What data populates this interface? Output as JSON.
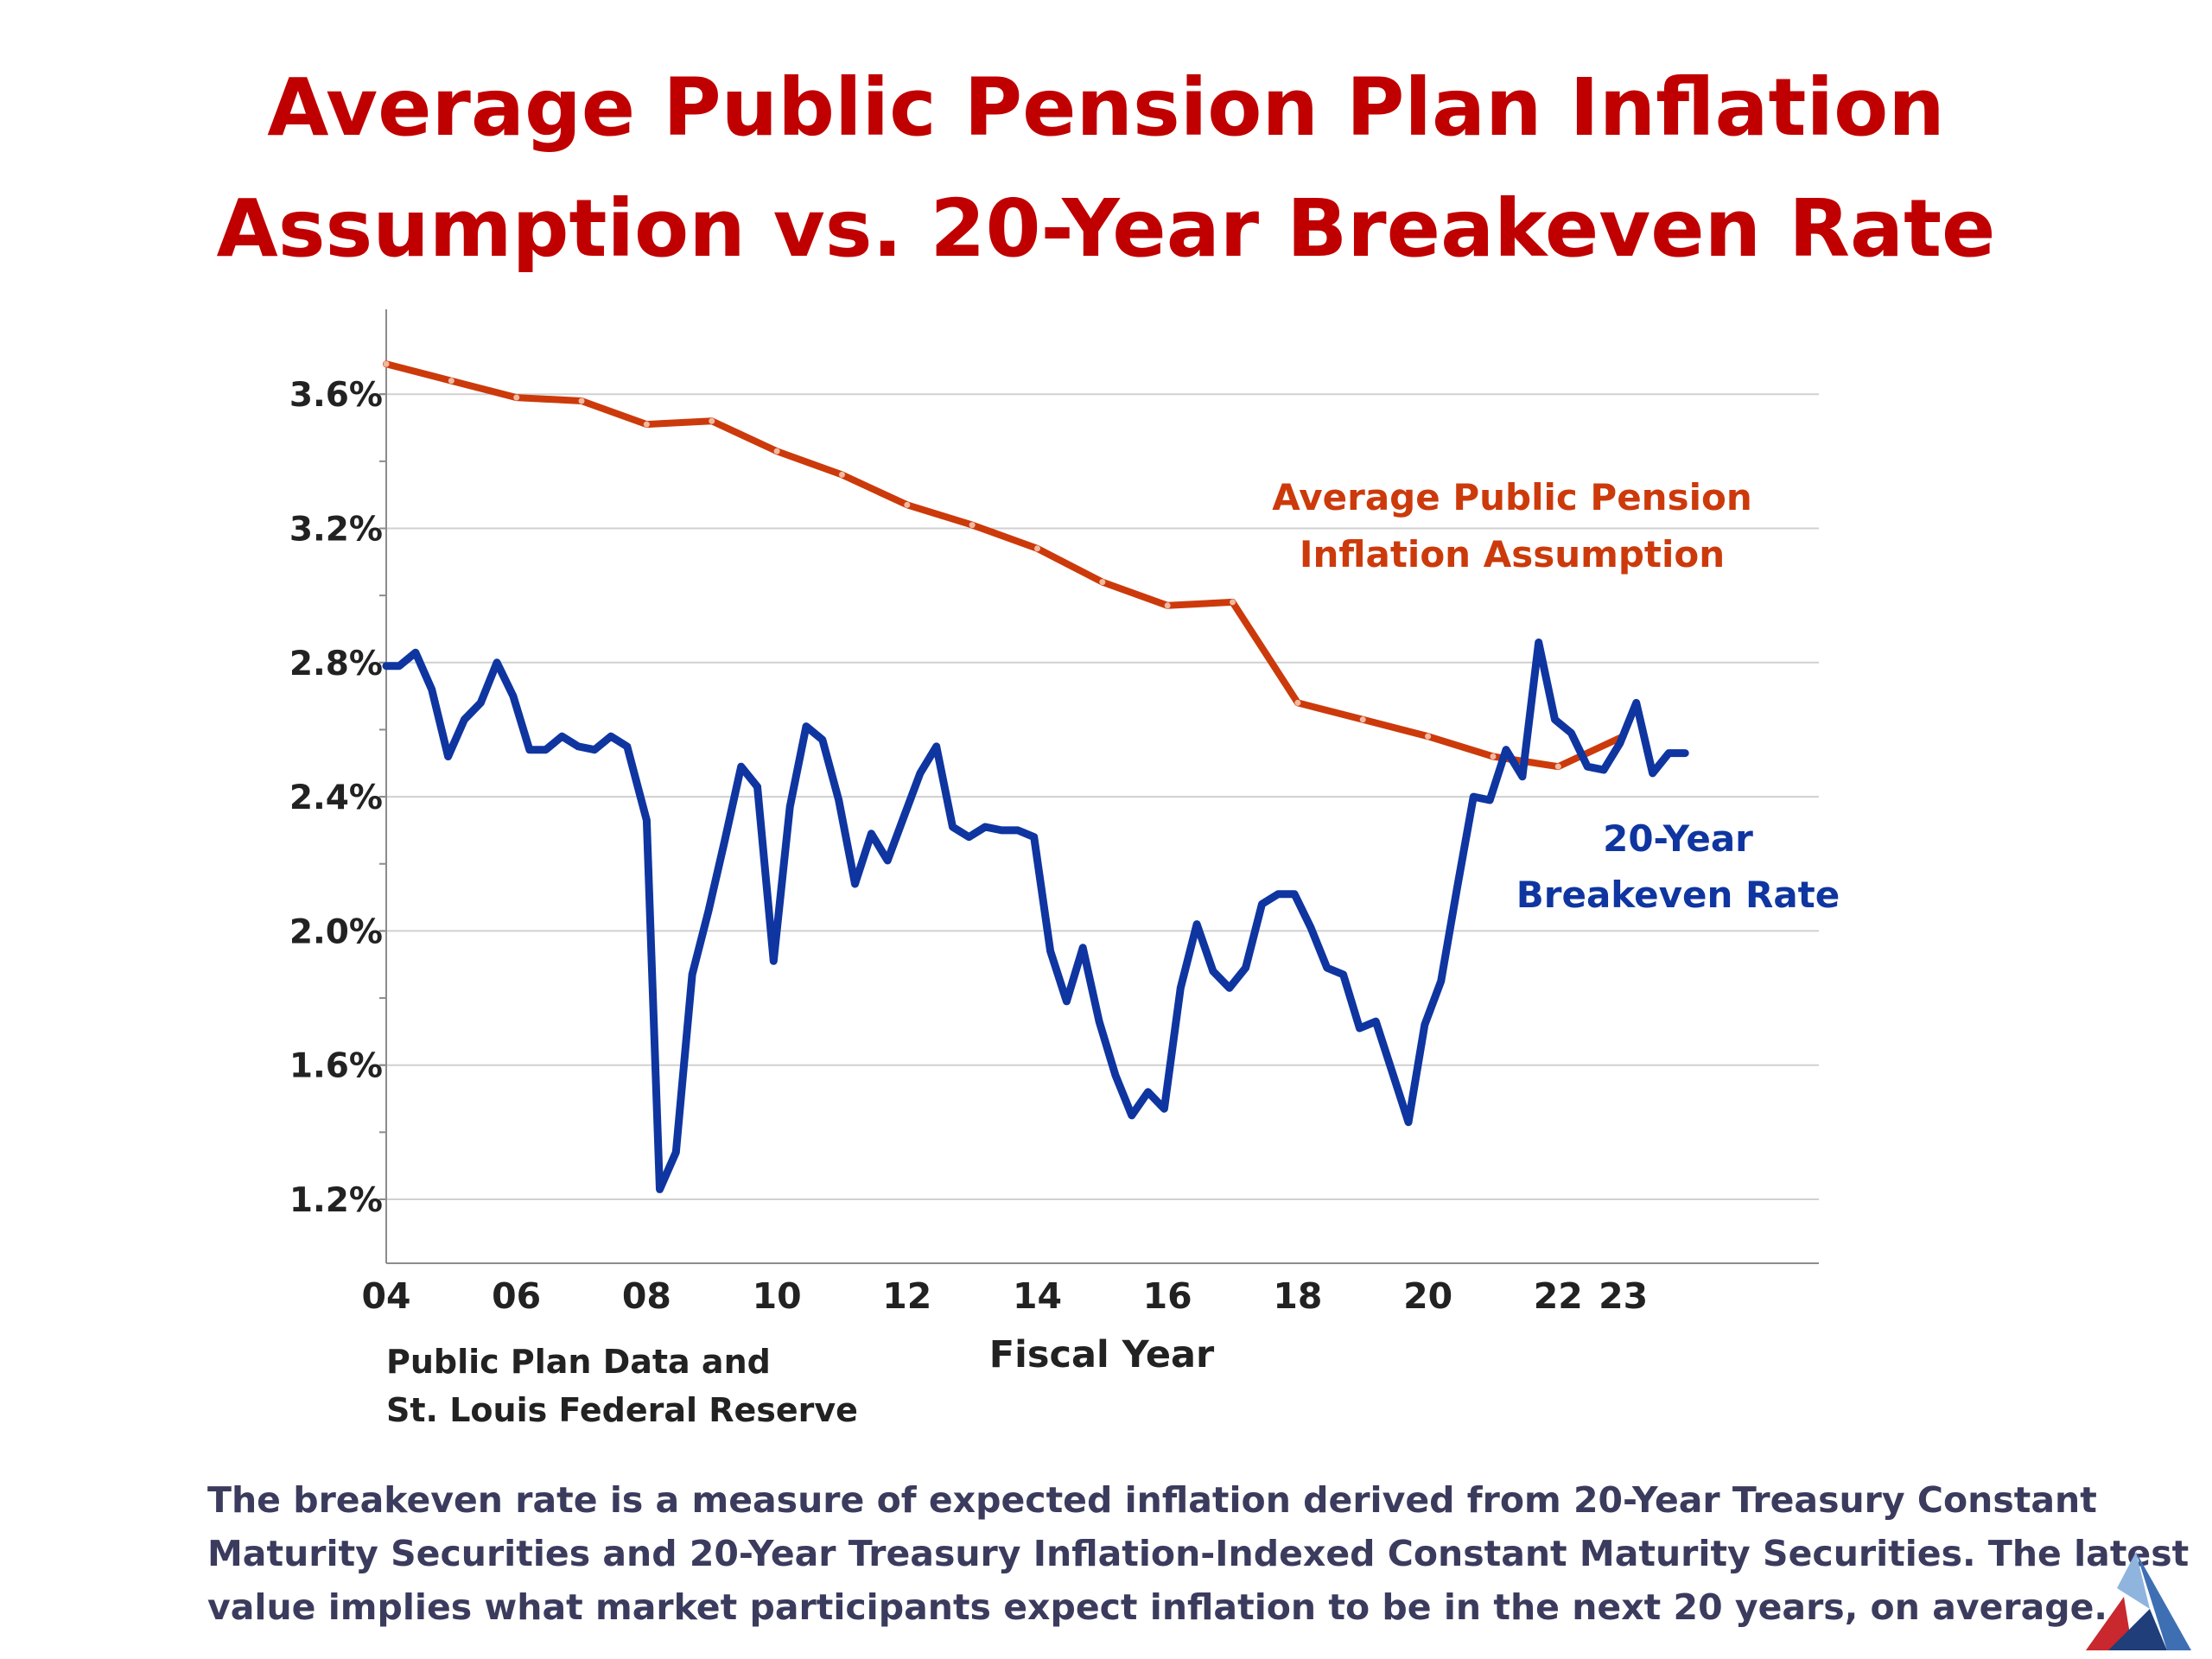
{
  "title": {
    "line1": "Average Public Pension Plan Inflation",
    "line2": "Assumption vs. 20-Year Breakeven Rate"
  },
  "source": {
    "line1": "Public Plan Data and",
    "line2": "St. Louis Federal Reserve"
  },
  "footnote": {
    "line1": "The breakeven rate is a measure of expected inflation derived from 20-Year Treasury Constant",
    "line2": "Maturity Securities and 20-Year Treasury Inflation-Indexed Constant Maturity Securities. The latest",
    "line3": "value implies what market participants expect inflation to be in the next 20 years, on average."
  },
  "colors": {
    "title": "#C00000",
    "pension": "#CC3A0B",
    "breakeven": "#0F35A0",
    "grid": "#D0D0D0",
    "axis": "#8C8C8C",
    "text": "#222222",
    "footnote": "#3B3B5E"
  },
  "logo_icon": "triangle-logo-icon",
  "chart_data": {
    "type": "line",
    "xlabel": "Fiscal Year",
    "ylabel": "",
    "xlim": [
      2004,
      2026
    ],
    "ylim": [
      1.0,
      3.85
    ],
    "x_ticks": [
      {
        "value": 2004,
        "label": "04"
      },
      {
        "value": 2006,
        "label": "06"
      },
      {
        "value": 2008,
        "label": "08"
      },
      {
        "value": 2010,
        "label": "10"
      },
      {
        "value": 2012,
        "label": "12"
      },
      {
        "value": 2014,
        "label": "14"
      },
      {
        "value": 2016,
        "label": "16"
      },
      {
        "value": 2018,
        "label": "18"
      },
      {
        "value": 2020,
        "label": "20"
      },
      {
        "value": 2022,
        "label": "22"
      },
      {
        "value": 2023,
        "label": "23"
      }
    ],
    "y_ticks": [
      {
        "value": 3.6,
        "label": "3.6%"
      },
      {
        "value": 3.2,
        "label": "3.2%"
      },
      {
        "value": 2.8,
        "label": "2.8%"
      },
      {
        "value": 2.4,
        "label": "2.4%"
      },
      {
        "value": 2.0,
        "label": "2.0%"
      },
      {
        "value": 1.6,
        "label": "1.6%"
      },
      {
        "value": 1.2,
        "label": "1.2%"
      }
    ],
    "grid": true,
    "series": [
      {
        "name": "Average Public Pension Inflation Assumption",
        "label_lines": [
          "Average Public Pension",
          "Inflation Assumption"
        ],
        "x": [
          2004,
          2005,
          2006,
          2007,
          2008,
          2009,
          2010,
          2011,
          2012,
          2013,
          2014,
          2015,
          2016,
          2017,
          2018,
          2019,
          2020,
          2021,
          2022,
          2023
        ],
        "values": [
          3.69,
          3.64,
          3.59,
          3.58,
          3.51,
          3.52,
          3.43,
          3.36,
          3.27,
          3.21,
          3.14,
          3.04,
          2.97,
          2.98,
          2.68,
          2.63,
          2.58,
          2.52,
          2.49,
          2.58
        ]
      },
      {
        "name": "20-Year Breakeven Rate",
        "label_lines": [
          "20-Year",
          "Breakeven Rate"
        ],
        "x": [
          2004.0,
          2004.2,
          2004.45,
          2004.7,
          2004.95,
          2005.2,
          2005.45,
          2005.7,
          2005.95,
          2006.2,
          2006.45,
          2006.7,
          2006.95,
          2007.2,
          2007.45,
          2007.7,
          2008.0,
          2008.2,
          2008.45,
          2008.7,
          2008.95,
          2009.2,
          2009.45,
          2009.7,
          2009.95,
          2010.2,
          2010.45,
          2010.7,
          2010.95,
          2011.2,
          2011.45,
          2011.7,
          2011.95,
          2012.2,
          2012.45,
          2012.7,
          2012.95,
          2013.2,
          2013.45,
          2013.7,
          2013.95,
          2014.2,
          2014.45,
          2014.7,
          2014.95,
          2015.2,
          2015.45,
          2015.7,
          2015.95,
          2016.2,
          2016.45,
          2016.7,
          2016.95,
          2017.2,
          2017.45,
          2017.7,
          2017.95,
          2018.2,
          2018.45,
          2018.7,
          2018.95,
          2019.2,
          2019.45,
          2019.7,
          2019.95,
          2020.2,
          2020.45,
          2020.7,
          2020.95,
          2021.2,
          2021.45,
          2021.7,
          2021.95,
          2022.2,
          2022.45,
          2022.7,
          2022.95,
          2023.2,
          2023.45,
          2023.7,
          2023.95
        ],
        "values": [
          2.79,
          2.79,
          2.83,
          2.72,
          2.52,
          2.63,
          2.68,
          2.8,
          2.7,
          2.54,
          2.54,
          2.58,
          2.55,
          2.54,
          2.58,
          2.55,
          2.33,
          1.23,
          1.34,
          1.87,
          2.06,
          2.27,
          2.49,
          2.43,
          1.91,
          2.37,
          2.61,
          2.57,
          2.39,
          2.14,
          2.29,
          2.21,
          2.34,
          2.47,
          2.55,
          2.31,
          2.28,
          2.31,
          2.3,
          2.3,
          2.28,
          1.94,
          1.79,
          1.95,
          1.73,
          1.57,
          1.45,
          1.52,
          1.47,
          1.83,
          2.02,
          1.88,
          1.83,
          1.89,
          2.08,
          2.11,
          2.11,
          2.01,
          1.89,
          1.87,
          1.71,
          1.73,
          1.58,
          1.43,
          1.72,
          1.85,
          2.13,
          2.4,
          2.39,
          2.54,
          2.46,
          2.86,
          2.63,
          2.59,
          2.49,
          2.48,
          2.56,
          2.68,
          2.47,
          2.53,
          2.53
        ]
      }
    ]
  }
}
